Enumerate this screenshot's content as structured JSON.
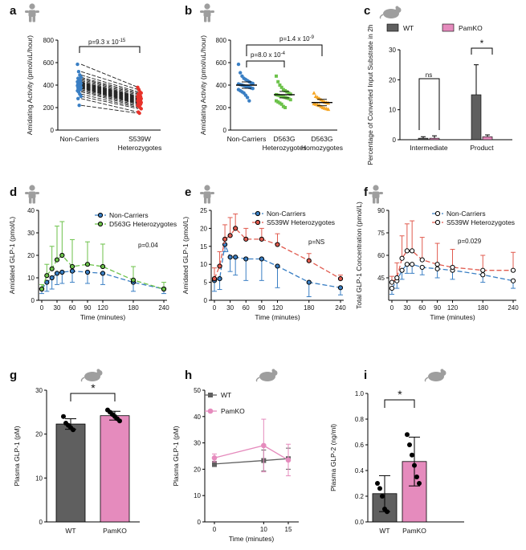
{
  "colors": {
    "blue": "#3a7fc4",
    "red": "#e8322a",
    "green": "#6cc24a",
    "orange": "#f6a623",
    "dark_gray": "#5f5f5f",
    "pink": "#e58bbd",
    "red_dashed": "#e15b4f"
  },
  "icons": {
    "human": "human-figure-icon",
    "mouse": "mouse-icon"
  },
  "panels": {
    "a": {
      "label": "a"
    },
    "b": {
      "label": "b"
    },
    "c": {
      "label": "c"
    },
    "d": {
      "label": "d"
    },
    "e": {
      "label": "e"
    },
    "f": {
      "label": "f"
    },
    "g": {
      "label": "g"
    },
    "h": {
      "label": "h"
    },
    "i": {
      "label": "i"
    }
  },
  "chart_data": [
    {
      "id": "a",
      "type": "scatter",
      "title": "",
      "ylabel": "Amidating Activity (pmol/uL/hour)",
      "categories": [
        "Non-Carriers",
        "S539W Heterozygotes"
      ],
      "ylim": [
        0,
        800
      ],
      "yticks": [
        0,
        200,
        400,
        600,
        800
      ],
      "annotation": "p=9.3 x 10-15",
      "series": [
        {
          "values": [
            585,
            520,
            490,
            470,
            460,
            450,
            440,
            430,
            425,
            420,
            415,
            410,
            405,
            400,
            395,
            390,
            385,
            380,
            375,
            370,
            360,
            350,
            340,
            320,
            300,
            280,
            220
          ]
        },
        {
          "values": [
            380,
            360,
            340,
            330,
            320,
            310,
            300,
            295,
            290,
            285,
            280,
            275,
            270,
            265,
            260,
            255,
            250,
            245,
            240,
            235,
            230,
            220,
            210,
            200,
            190,
            160,
            150
          ]
        }
      ]
    },
    {
      "id": "b",
      "type": "scatter",
      "title": "",
      "ylabel": "Amidating Activity (pmol/uL/hour)",
      "categories": [
        "Non-Carriers",
        "D563G Heterozygotes",
        "D563G Homozygotes"
      ],
      "ylim": [
        0,
        800
      ],
      "yticks": [
        0,
        200,
        400,
        600,
        800
      ],
      "annotations": [
        "p=8.0 x 10-4",
        "p=1.4 x 10-9"
      ],
      "means": [
        400,
        315,
        245
      ],
      "series": [
        {
          "values": [
            585,
            510,
            480,
            460,
            450,
            440,
            430,
            420,
            415,
            410,
            405,
            400,
            395,
            390,
            385,
            380,
            375,
            370,
            360,
            350,
            340,
            330,
            310,
            290,
            260
          ]
        },
        {
          "values": [
            480,
            430,
            400,
            380,
            360,
            350,
            340,
            330,
            320,
            315,
            310,
            305,
            300,
            295,
            290,
            285,
            280,
            270,
            260,
            250,
            240,
            230,
            210,
            200
          ]
        },
        {
          "values": [
            330,
            300,
            290,
            280,
            270,
            260,
            250,
            245,
            240,
            235,
            230,
            225,
            220,
            210,
            200,
            195,
            190,
            185
          ]
        }
      ]
    },
    {
      "id": "c",
      "type": "bar",
      "title": "",
      "ylabel": "Percentage of Converted Input Substrate in 2h",
      "categories": [
        "Intermediate",
        "Product"
      ],
      "ylim": [
        0,
        30
      ],
      "yticks": [
        0,
        10,
        20,
        30
      ],
      "legend": [
        "WT",
        "PamKO"
      ],
      "annotations": [
        "ns",
        "*"
      ],
      "series": [
        {
          "name": "WT",
          "values": [
            0.5,
            15
          ],
          "err": [
            0.5,
            10
          ]
        },
        {
          "name": "PamKO",
          "values": [
            0.5,
            1
          ],
          "err": [
            0.8,
            0.6
          ]
        }
      ]
    },
    {
      "id": "d",
      "type": "line",
      "title": "",
      "xlabel": "Time (minutes)",
      "ylabel": "Amidated GLP-1 (pmol/L)",
      "x": [
        0,
        10,
        20,
        30,
        40,
        60,
        90,
        120,
        180,
        240
      ],
      "xticks": [
        0,
        30,
        60,
        90,
        120,
        180,
        240
      ],
      "ylim": [
        0,
        40
      ],
      "yticks": [
        0,
        10,
        20,
        30,
        40
      ],
      "annotation": "p=0.04",
      "series": [
        {
          "name": "Non-Carriers",
          "values": [
            5,
            8,
            10,
            12,
            12.5,
            13,
            12.5,
            12,
            8,
            5
          ],
          "err": [
            2,
            4,
            5,
            5,
            5,
            5,
            5,
            5,
            4,
            2
          ]
        },
        {
          "name": "D563G Heterozygotes",
          "values": [
            5,
            11,
            14,
            18,
            20,
            15,
            16,
            15,
            9,
            5
          ],
          "err": [
            2,
            5,
            10,
            15,
            15,
            12,
            10,
            10,
            6,
            3
          ]
        }
      ]
    },
    {
      "id": "e",
      "type": "line",
      "title": "",
      "xlabel": "Time (minutes)",
      "ylabel": "Amidated GLP-1 (pmol/L)",
      "x": [
        0,
        10,
        20,
        30,
        40,
        60,
        90,
        120,
        180,
        240
      ],
      "xticks": [
        0,
        30,
        60,
        90,
        120,
        180,
        240
      ],
      "ylim": [
        0,
        25
      ],
      "yticks": [
        0,
        5,
        10,
        15,
        20,
        25
      ],
      "annotation": "p=NS",
      "series": [
        {
          "name": "Non-Carriers",
          "values": [
            5.5,
            6,
            15.5,
            12,
            12,
            11.5,
            11.5,
            9.5,
            5,
            3.5
          ],
          "err": [
            3,
            3,
            2,
            4,
            5,
            6,
            6,
            6,
            4,
            2
          ]
        },
        {
          "name": "S539W Heterozygotes",
          "values": [
            6,
            9.5,
            17,
            18,
            20,
            17,
            17,
            15.5,
            11,
            6
          ],
          "err": [
            3,
            4,
            4,
            5,
            4,
            3,
            3,
            3,
            2,
            1
          ]
        }
      ]
    },
    {
      "id": "f",
      "type": "line",
      "title": "",
      "xlabel": "Time (minutes)",
      "ylabel": "Total GLP-1 Concentration (pmol/L)",
      "x": [
        0,
        10,
        20,
        30,
        40,
        60,
        90,
        120,
        180,
        240
      ],
      "xticks": [
        0,
        30,
        60,
        90,
        120,
        180,
        240
      ],
      "ylim": [
        30,
        90
      ],
      "yticks": [
        45,
        60,
        75,
        90
      ],
      "annotation": "p=0.029",
      "series": [
        {
          "name": "Non-Carriers",
          "values": [
            38,
            43,
            50,
            54,
            54,
            52,
            51,
            50,
            47,
            43
          ],
          "err": [
            4,
            5,
            6,
            6,
            6,
            5,
            6,
            6,
            5,
            5
          ]
        },
        {
          "name": "S539W Heterozygotes",
          "values": [
            42,
            45,
            58,
            63,
            63,
            57,
            54,
            52,
            50,
            50
          ],
          "err": [
            4,
            10,
            15,
            18,
            20,
            15,
            14,
            12,
            10,
            12
          ]
        }
      ]
    },
    {
      "id": "g",
      "type": "bar",
      "title": "",
      "ylabel": "Plasma GLP-1 (pM)",
      "categories": [
        "WT",
        "PamKO"
      ],
      "ylim": [
        0,
        30
      ],
      "yticks": [
        0,
        10,
        20,
        30
      ],
      "annotation": "*",
      "series": [
        {
          "values": [
            22.3,
            24.2
          ],
          "err": [
            1.2,
            1.0
          ]
        }
      ],
      "points": [
        [
          24,
          22.5,
          22,
          21.5,
          21
        ],
        [
          25.5,
          25,
          24.5,
          24,
          23.5,
          23
        ]
      ]
    },
    {
      "id": "h",
      "type": "line",
      "title": "",
      "xlabel": "Time (minutes)",
      "ylabel": "Plasma GLP-1 (pM)",
      "x": [
        0,
        10,
        15
      ],
      "xticks": [
        0,
        10,
        15
      ],
      "ylim": [
        0,
        50
      ],
      "yticks": [
        0,
        10,
        20,
        30,
        40,
        50
      ],
      "series": [
        {
          "name": "WT",
          "values": [
            22,
            23.3,
            24
          ],
          "err": [
            1,
            4,
            4
          ]
        },
        {
          "name": "PamKO",
          "values": [
            24.3,
            29,
            23.5
          ],
          "err": [
            1.5,
            10,
            6
          ]
        }
      ]
    },
    {
      "id": "i",
      "type": "bar",
      "title": "",
      "ylabel": "Plasma GLP-2 (ng/ml)",
      "categories": [
        "WT",
        "PamKO"
      ],
      "ylim": [
        0,
        1.0
      ],
      "yticks": [
        0.0,
        0.2,
        0.4,
        0.6,
        0.8,
        1.0
      ],
      "annotation": "*",
      "series": [
        {
          "values": [
            0.22,
            0.47
          ],
          "err": [
            0.14,
            0.19
          ]
        }
      ],
      "points": [
        [
          0.3,
          0.26,
          0.2,
          0.1,
          0.08
        ],
        [
          0.68,
          0.6,
          0.52,
          0.44,
          0.35,
          0.3
        ]
      ]
    }
  ]
}
